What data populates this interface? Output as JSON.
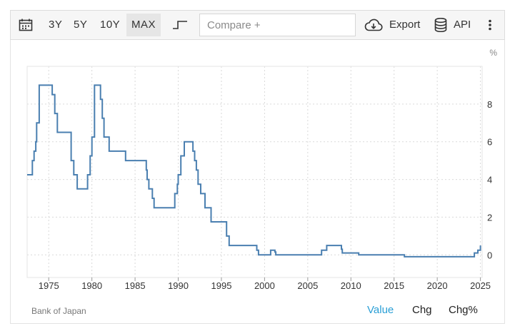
{
  "toolbar": {
    "ranges": [
      "3Y",
      "5Y",
      "10Y",
      "MAX"
    ],
    "active_range": "MAX",
    "compare_placeholder": "Compare +",
    "export_label": "Export",
    "api_label": "API",
    "icons": {
      "calendar": "calendar-icon",
      "chart_style": "step-line-icon",
      "export": "cloud-download-icon",
      "api": "database-icon",
      "more": "more-vertical-icon"
    }
  },
  "source": "Bank of Japan",
  "tabs": {
    "value": "Value",
    "chg": "Chg",
    "chg_pct": "Chg%",
    "active": "Value"
  },
  "colors": {
    "line": "#4a7fb0",
    "active_tab": "#2a9fd6",
    "grid": "#d9d9d9"
  },
  "chart_data": {
    "type": "line",
    "step": true,
    "unit_label": "%",
    "xlim": [
      1972.5,
      2025.2
    ],
    "ylim": [
      -1.2,
      10.0
    ],
    "x_ticks": [
      1975,
      1980,
      1985,
      1990,
      1995,
      2000,
      2005,
      2010,
      2015,
      2020,
      2025
    ],
    "y_ticks": [
      0,
      2,
      4,
      6,
      8
    ],
    "grid": true,
    "series": [
      {
        "points": [
          [
            1972.5,
            4.25
          ],
          [
            1973.0,
            4.25
          ],
          [
            1973.1,
            5.0
          ],
          [
            1973.3,
            5.5
          ],
          [
            1973.5,
            6.0
          ],
          [
            1973.6,
            7.0
          ],
          [
            1973.9,
            9.0
          ],
          [
            1975.3,
            9.0
          ],
          [
            1975.4,
            8.5
          ],
          [
            1975.7,
            7.5
          ],
          [
            1976.0,
            6.5
          ],
          [
            1977.4,
            6.5
          ],
          [
            1977.6,
            5.0
          ],
          [
            1977.9,
            4.25
          ],
          [
            1978.3,
            3.5
          ],
          [
            1979.4,
            3.5
          ],
          [
            1979.5,
            4.25
          ],
          [
            1979.8,
            5.25
          ],
          [
            1980.0,
            6.25
          ],
          [
            1980.3,
            9.0
          ],
          [
            1980.8,
            9.0
          ],
          [
            1981.0,
            8.25
          ],
          [
            1981.2,
            7.25
          ],
          [
            1981.4,
            6.25
          ],
          [
            1982.0,
            5.5
          ],
          [
            1983.8,
            5.5
          ],
          [
            1983.9,
            5.0
          ],
          [
            1986.1,
            5.0
          ],
          [
            1986.3,
            4.5
          ],
          [
            1986.4,
            4.0
          ],
          [
            1986.6,
            3.5
          ],
          [
            1987.0,
            3.0
          ],
          [
            1987.2,
            2.5
          ],
          [
            1989.5,
            2.5
          ],
          [
            1989.6,
            3.25
          ],
          [
            1989.9,
            3.75
          ],
          [
            1990.0,
            4.25
          ],
          [
            1990.3,
            5.25
          ],
          [
            1990.7,
            6.0
          ],
          [
            1991.5,
            6.0
          ],
          [
            1991.7,
            5.5
          ],
          [
            1991.9,
            5.0
          ],
          [
            1992.1,
            4.5
          ],
          [
            1992.3,
            3.75
          ],
          [
            1992.6,
            3.25
          ],
          [
            1993.1,
            2.5
          ],
          [
            1993.8,
            1.75
          ],
          [
            1995.3,
            1.75
          ],
          [
            1995.6,
            1.0
          ],
          [
            1995.9,
            0.5
          ],
          [
            1998.7,
            0.5
          ],
          [
            1999.1,
            0.25
          ],
          [
            1999.3,
            0.0
          ],
          [
            2000.6,
            0.0
          ],
          [
            2000.7,
            0.25
          ],
          [
            2001.2,
            0.15
          ],
          [
            2001.3,
            0.0
          ],
          [
            2006.5,
            0.0
          ],
          [
            2006.6,
            0.25
          ],
          [
            2007.2,
            0.5
          ],
          [
            2008.8,
            0.5
          ],
          [
            2008.9,
            0.3
          ],
          [
            2009.0,
            0.1
          ],
          [
            2010.8,
            0.1
          ],
          [
            2010.9,
            0.0
          ],
          [
            2016.1,
            0.0
          ],
          [
            2016.2,
            -0.1
          ],
          [
            2024.2,
            -0.1
          ],
          [
            2024.3,
            0.1
          ],
          [
            2024.7,
            0.25
          ],
          [
            2025.0,
            0.5
          ]
        ]
      }
    ]
  }
}
